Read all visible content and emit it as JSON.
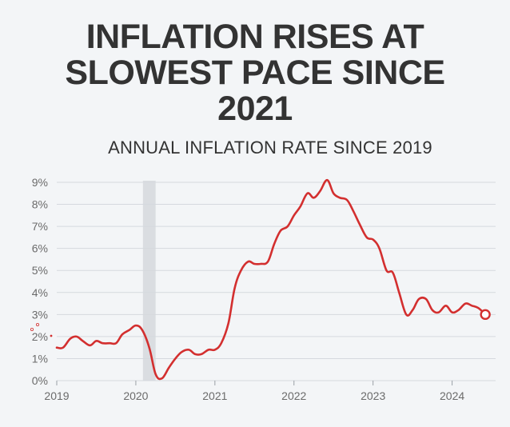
{
  "header": {
    "title": "INFLATION RISES AT SLOWEST PACE SINCE 2021",
    "subtitle": "ANNUAL INFLATION RATE SINCE 2019"
  },
  "colors": {
    "line": "#d32f2f",
    "grid": "#d5d9de",
    "recession_band": "#dadde1",
    "axis_text": "#6b6b6b",
    "title_text": "#333333",
    "background": "#f3f5f7"
  },
  "chart_data": {
    "type": "line",
    "title": "INFLATION RISES AT SLOWEST PACE SINCE 2021",
    "subtitle": "ANNUAL INFLATION RATE SINCE 2019",
    "xlabel": "",
    "ylabel": "",
    "ylim": [
      0,
      9
    ],
    "xlim": [
      2019.0,
      2024.55
    ],
    "grid": true,
    "legend": "none",
    "x_ticks": [
      {
        "value": 2019,
        "label": "2019"
      },
      {
        "value": 2020,
        "label": "2020"
      },
      {
        "value": 2021,
        "label": "2021"
      },
      {
        "value": 2022,
        "label": "2022"
      },
      {
        "value": 2023,
        "label": "2023"
      },
      {
        "value": 2024,
        "label": "2024"
      }
    ],
    "y_ticks": [
      {
        "value": 0,
        "label": "0%"
      },
      {
        "value": 1,
        "label": "1%"
      },
      {
        "value": 2,
        "label": "2%"
      },
      {
        "value": 3,
        "label": "3%"
      },
      {
        "value": 4,
        "label": "4%"
      },
      {
        "value": 5,
        "label": "5%"
      },
      {
        "value": 6,
        "label": "6%"
      },
      {
        "value": 7,
        "label": "7%"
      },
      {
        "value": 8,
        "label": "8%"
      },
      {
        "value": 9,
        "label": "9%"
      }
    ],
    "shaded_region": {
      "start": 2020.09,
      "end": 2020.25
    },
    "series": [
      {
        "x": [
          2019.0,
          2019.08,
          2019.17,
          2019.25,
          2019.33,
          2019.42,
          2019.5,
          2019.58,
          2019.67,
          2019.75,
          2019.83,
          2019.92,
          2020.0,
          2020.08,
          2020.17,
          2020.25,
          2020.33,
          2020.42,
          2020.5,
          2020.58,
          2020.67,
          2020.75,
          2020.83,
          2020.92,
          2021.0,
          2021.08,
          2021.17,
          2021.25,
          2021.33,
          2021.42,
          2021.5,
          2021.58,
          2021.67,
          2021.75,
          2021.83,
          2021.92,
          2022.0,
          2022.08,
          2022.17,
          2022.25,
          2022.33,
          2022.42,
          2022.5,
          2022.58,
          2022.67,
          2022.75,
          2022.83,
          2022.92,
          2023.0,
          2023.08,
          2023.17,
          2023.25,
          2023.33,
          2023.42,
          2023.5,
          2023.58,
          2023.67,
          2023.75,
          2023.83,
          2023.92,
          2024.0,
          2024.08,
          2024.17,
          2024.25,
          2024.33,
          2024.42
        ],
        "values": [
          1.5,
          1.5,
          1.9,
          2.0,
          1.8,
          1.6,
          1.8,
          1.7,
          1.7,
          1.7,
          2.1,
          2.3,
          2.5,
          2.3,
          1.5,
          0.3,
          0.1,
          0.6,
          1.0,
          1.3,
          1.4,
          1.2,
          1.2,
          1.4,
          1.4,
          1.7,
          2.6,
          4.2,
          5.0,
          5.4,
          5.3,
          5.3,
          5.4,
          6.2,
          6.8,
          7.0,
          7.5,
          7.9,
          8.5,
          8.3,
          8.6,
          9.1,
          8.5,
          8.3,
          8.2,
          7.7,
          7.1,
          6.5,
          6.4,
          6.0,
          5.0,
          4.9,
          4.0,
          3.0,
          3.2,
          3.7,
          3.7,
          3.2,
          3.1,
          3.4,
          3.1,
          3.2,
          3.5,
          3.4,
          3.3,
          3.0
        ]
      }
    ]
  }
}
